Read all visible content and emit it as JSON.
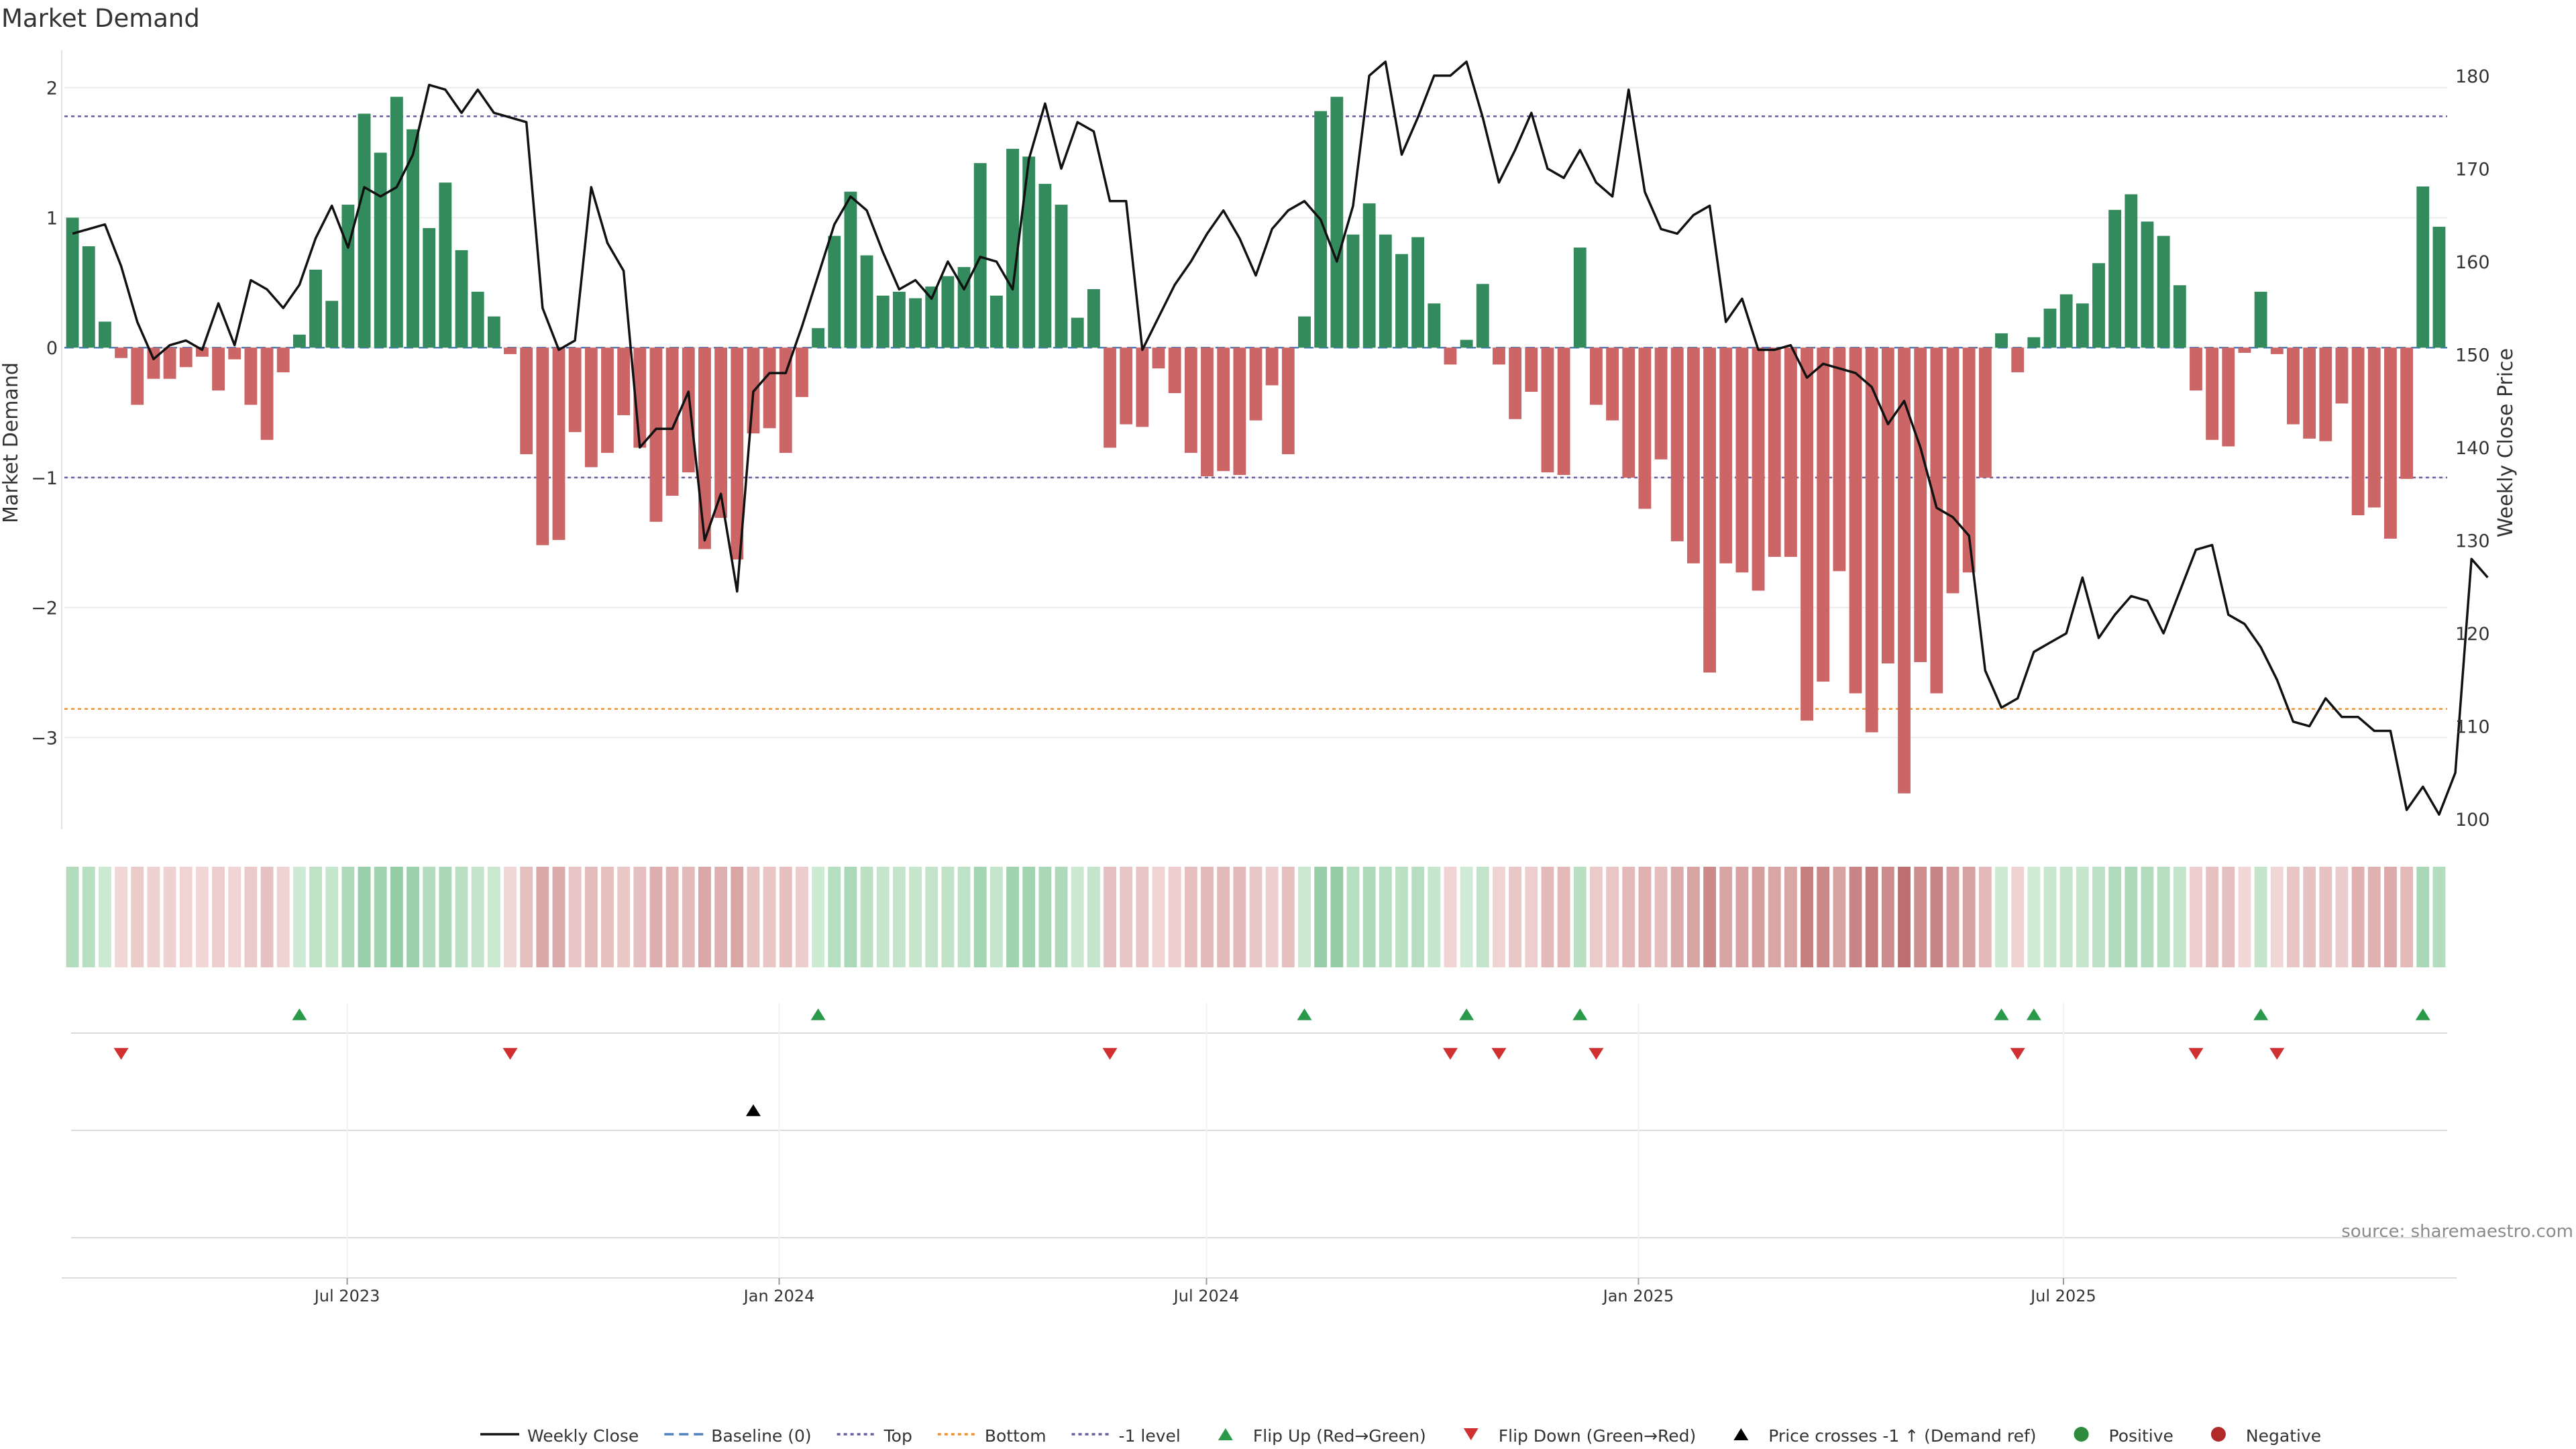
{
  "chart_data": {
    "type": "bar",
    "title": "Market Demand",
    "ylabel": "Market Demand",
    "y2label": "Weekly Close Price",
    "ylim": [
      -3.7,
      2.2
    ],
    "y2lim": [
      99,
      181.5
    ],
    "yticks": [
      2,
      1,
      0,
      -1,
      -2,
      -3
    ],
    "y2ticks": [
      180,
      170,
      160,
      150,
      140,
      130,
      120,
      110,
      100
    ],
    "x_start": "2023-03-06",
    "x_end": "2025-12-08",
    "xticks": [
      {
        "label": "Jul 2023",
        "date": "2023-07-01"
      },
      {
        "label": "Jan 2024",
        "date": "2024-01-01"
      },
      {
        "label": "Jul 2024",
        "date": "2024-07-01"
      },
      {
        "label": "Jan 2025",
        "date": "2025-01-01"
      },
      {
        "label": "Jul 2025",
        "date": "2025-07-01"
      }
    ],
    "reference_lines": [
      {
        "name": "Top",
        "value": 1.78,
        "color": "#6a5d9a"
      },
      {
        "name": "-1 level",
        "value": -1.0,
        "color": "#6a5d9a"
      },
      {
        "name": "Bottom",
        "value": -2.78,
        "color": "#e8943a"
      }
    ],
    "demand": [
      1.0,
      0.78,
      0.2,
      -0.08,
      -0.44,
      -0.24,
      -0.24,
      -0.15,
      -0.07,
      -0.33,
      -0.09,
      -0.44,
      -0.71,
      -0.19,
      0.1,
      0.6,
      0.36,
      1.1,
      1.8,
      1.5,
      1.93,
      1.68,
      0.92,
      1.27,
      0.75,
      0.43,
      0.24,
      -0.05,
      -0.82,
      -1.52,
      -1.48,
      -0.65,
      -0.92,
      -0.81,
      -0.52,
      -0.77,
      -1.34,
      -1.14,
      -0.96,
      -1.55,
      -1.31,
      -1.63,
      -0.66,
      -0.62,
      -0.81,
      -0.38,
      0.15,
      0.86,
      1.2,
      0.71,
      0.4,
      0.43,
      0.38,
      0.47,
      0.55,
      0.62,
      1.42,
      0.4,
      1.53,
      1.47,
      1.26,
      1.1,
      0.23,
      0.45,
      -0.77,
      -0.59,
      -0.61,
      -0.16,
      -0.35,
      -0.81,
      -0.99,
      -0.95,
      -0.98,
      -0.56,
      -0.29,
      -0.82,
      0.24,
      1.82,
      1.93,
      0.87,
      1.11,
      0.87,
      0.72,
      0.85,
      0.34,
      -0.13,
      0.06,
      0.49,
      -0.13,
      -0.55,
      -0.34,
      -0.96,
      -0.98,
      0.77,
      -0.44,
      -0.56,
      -1.0,
      -1.24,
      -0.86,
      -1.49,
      -1.66,
      -2.5,
      -1.66,
      -1.73,
      -1.87,
      -1.61,
      -1.61,
      -2.87,
      -2.57,
      -1.72,
      -2.66,
      -2.96,
      -2.43,
      -3.43,
      -2.42,
      -2.66,
      -1.89,
      -1.73,
      -1.0,
      0.11,
      -0.19,
      0.08,
      0.3,
      0.41,
      0.34,
      0.65,
      1.06,
      1.18,
      0.97,
      0.86,
      0.48,
      -0.33,
      -0.71,
      -0.76,
      -0.04,
      0.43,
      -0.05,
      -0.59,
      -0.7,
      -0.72,
      -0.43,
      -1.29,
      -1.23,
      -1.47,
      -1.01,
      1.24,
      0.93
    ],
    "close": [
      163,
      163.5,
      164,
      159.5,
      153.5,
      149.5,
      151,
      151.5,
      150.5,
      155.5,
      151,
      158,
      157,
      155,
      157.5,
      162.5,
      166,
      161.5,
      168,
      167,
      168,
      171.5,
      179,
      178.5,
      176,
      178.5,
      176,
      175.5,
      175,
      155,
      150.5,
      151.5,
      168,
      162,
      159,
      140,
      142,
      142,
      146,
      130,
      135,
      124.5,
      146,
      148,
      148,
      153,
      158.5,
      164,
      167,
      165.5,
      161,
      157,
      158,
      156,
      160,
      157,
      160.5,
      160,
      157,
      171,
      177,
      170,
      175,
      174,
      166.5,
      166.5,
      150.5,
      154,
      157.5,
      160,
      163,
      165.5,
      162.5,
      158.5,
      163.5,
      165.5,
      166.5,
      164.5,
      160,
      166,
      180,
      183,
      171.5,
      175.5,
      180,
      180,
      182,
      175.5,
      168.5,
      172,
      176,
      170,
      169,
      172,
      168.5,
      167,
      178.5,
      167.5,
      163.5,
      163,
      165,
      166,
      153.5,
      156,
      150.5,
      150.5,
      151,
      147.5,
      149,
      148.5,
      148,
      146.5,
      142.5,
      145,
      140,
      133.5,
      132.5,
      130.5,
      116,
      112,
      113,
      118,
      119,
      120,
      126,
      119.5,
      122,
      124,
      123.5,
      120,
      124.5,
      129,
      129.5,
      122,
      121,
      118.5,
      115,
      110.5,
      110,
      113,
      111,
      111,
      109.5,
      109.5,
      101,
      103.5,
      100.5,
      105,
      128,
      126
    ]
  },
  "source": "source: sharemaestro.com",
  "legend": [
    {
      "label": "Weekly Close",
      "kind": "solid-line",
      "color": "#111111"
    },
    {
      "label": "Baseline (0)",
      "kind": "dashed-line",
      "color": "#4f80bd"
    },
    {
      "label": "Top",
      "kind": "dotted-line",
      "color": "#6a5d9a"
    },
    {
      "label": "Bottom",
      "kind": "dotted-line",
      "color": "#e8943a"
    },
    {
      "label": "-1 level",
      "kind": "dotted-line",
      "color": "#6a5d9a"
    },
    {
      "label": "Flip Up (Red→Green)",
      "kind": "triangle-up",
      "color": "#2a9a4a"
    },
    {
      "label": "Flip Down (Green→Red)",
      "kind": "triangle-down",
      "color": "#d03030"
    },
    {
      "label": "Price crosses -1 ↑ (Demand ref)",
      "kind": "triangle-up",
      "color": "#000000"
    },
    {
      "label": "Positive",
      "kind": "dot",
      "color": "#2e8b3c"
    },
    {
      "label": "Negative",
      "kind": "dot",
      "color": "#b02a2a"
    }
  ],
  "colors": {
    "positive_bar": "#338a5c",
    "negative_bar": "#cc6565",
    "price_line": "#111111",
    "baseline": "#4f80bd"
  }
}
